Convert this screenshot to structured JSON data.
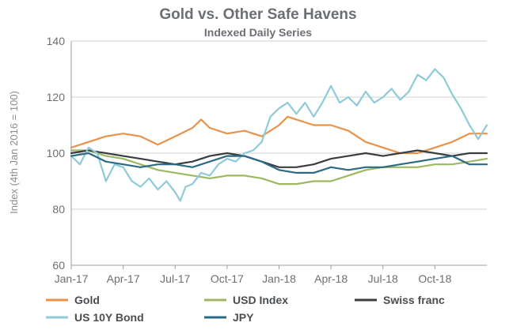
{
  "chart_data": {
    "type": "line",
    "title": "Gold vs. Other Safe Havens",
    "subtitle": "Indexed Daily Series",
    "ylabel": "Index (4th Jan 2016 = 100)",
    "xlabel": "",
    "ylim": [
      60,
      140
    ],
    "yticks": [
      60,
      80,
      100,
      120,
      140
    ],
    "x_range": [
      0,
      24
    ],
    "xtick_labels": [
      "Jan-17",
      "Apr-17",
      "Jul-17",
      "Oct-17",
      "Jan-18",
      "Apr-18",
      "Jul-18",
      "Oct-18"
    ],
    "xtick_positions": [
      0,
      3,
      6,
      9,
      12,
      15,
      18,
      21
    ],
    "grid": "horizontal",
    "legend_position": "bottom",
    "series": [
      {
        "name": "Gold",
        "color": "#e8924a",
        "points": [
          [
            0,
            102
          ],
          [
            1,
            104
          ],
          [
            2,
            106
          ],
          [
            3,
            107
          ],
          [
            4,
            106
          ],
          [
            5,
            103
          ],
          [
            6,
            106
          ],
          [
            7,
            109
          ],
          [
            7.5,
            112
          ],
          [
            8,
            109
          ],
          [
            9,
            107
          ],
          [
            10,
            108
          ],
          [
            11,
            106
          ],
          [
            12,
            110
          ],
          [
            12.5,
            113
          ],
          [
            13,
            112
          ],
          [
            14,
            110
          ],
          [
            15,
            110
          ],
          [
            16,
            108
          ],
          [
            17,
            104
          ],
          [
            18,
            102
          ],
          [
            19,
            100
          ],
          [
            20,
            100
          ],
          [
            21,
            102
          ],
          [
            22,
            104
          ],
          [
            23,
            107
          ],
          [
            24,
            107
          ]
        ]
      },
      {
        "name": "USD Index",
        "color": "#9ab960",
        "points": [
          [
            0,
            101
          ],
          [
            1,
            101
          ],
          [
            2,
            99
          ],
          [
            3,
            98
          ],
          [
            4,
            96
          ],
          [
            5,
            94
          ],
          [
            6,
            93
          ],
          [
            7,
            92
          ],
          [
            8,
            91
          ],
          [
            9,
            92
          ],
          [
            10,
            92
          ],
          [
            11,
            91
          ],
          [
            12,
            89
          ],
          [
            13,
            89
          ],
          [
            14,
            90
          ],
          [
            15,
            90
          ],
          [
            16,
            92
          ],
          [
            17,
            94
          ],
          [
            18,
            95
          ],
          [
            19,
            95
          ],
          [
            20,
            95
          ],
          [
            21,
            96
          ],
          [
            22,
            96
          ],
          [
            23,
            97
          ],
          [
            24,
            98
          ]
        ]
      },
      {
        "name": "Swiss franc",
        "color": "#3a3d40",
        "points": [
          [
            0,
            100
          ],
          [
            1,
            101
          ],
          [
            2,
            100
          ],
          [
            3,
            99
          ],
          [
            4,
            98
          ],
          [
            5,
            97
          ],
          [
            6,
            96
          ],
          [
            7,
            97
          ],
          [
            8,
            99
          ],
          [
            9,
            100
          ],
          [
            10,
            99
          ],
          [
            11,
            97
          ],
          [
            12,
            95
          ],
          [
            13,
            95
          ],
          [
            14,
            96
          ],
          [
            15,
            98
          ],
          [
            16,
            99
          ],
          [
            17,
            100
          ],
          [
            18,
            99
          ],
          [
            19,
            100
          ],
          [
            20,
            101
          ],
          [
            21,
            100
          ],
          [
            22,
            99
          ],
          [
            23,
            100
          ],
          [
            24,
            100
          ]
        ]
      },
      {
        "name": "US 10Y Bond",
        "color": "#8fcad8",
        "points": [
          [
            0,
            99
          ],
          [
            0.5,
            96
          ],
          [
            1,
            102
          ],
          [
            1.5,
            100
          ],
          [
            2,
            90
          ],
          [
            2.5,
            96
          ],
          [
            3,
            95
          ],
          [
            3.5,
            90
          ],
          [
            4,
            88
          ],
          [
            4.5,
            91
          ],
          [
            5,
            87
          ],
          [
            5.5,
            90
          ],
          [
            6,
            86
          ],
          [
            6.3,
            83
          ],
          [
            6.6,
            88
          ],
          [
            7,
            89
          ],
          [
            7.5,
            93
          ],
          [
            8,
            92
          ],
          [
            8.5,
            96
          ],
          [
            9,
            98
          ],
          [
            9.5,
            97
          ],
          [
            10,
            100
          ],
          [
            10.5,
            101
          ],
          [
            11,
            104
          ],
          [
            11.5,
            113
          ],
          [
            12,
            116
          ],
          [
            12.5,
            118
          ],
          [
            13,
            114
          ],
          [
            13.5,
            118
          ],
          [
            14,
            113
          ],
          [
            14.5,
            118
          ],
          [
            15,
            124
          ],
          [
            15.5,
            118
          ],
          [
            16,
            120
          ],
          [
            16.5,
            117
          ],
          [
            17,
            122
          ],
          [
            17.5,
            118
          ],
          [
            18,
            120
          ],
          [
            18.5,
            123
          ],
          [
            19,
            119
          ],
          [
            19.5,
            122
          ],
          [
            20,
            128
          ],
          [
            20.5,
            126
          ],
          [
            21,
            130
          ],
          [
            21.5,
            127
          ],
          [
            22,
            121
          ],
          [
            22.5,
            116
          ],
          [
            23,
            110
          ],
          [
            23.5,
            105
          ],
          [
            24,
            110
          ]
        ]
      },
      {
        "name": "JPY",
        "color": "#2a6a84",
        "points": [
          [
            0,
            99
          ],
          [
            1,
            100
          ],
          [
            2,
            97
          ],
          [
            3,
            96
          ],
          [
            4,
            95
          ],
          [
            5,
            96
          ],
          [
            6,
            96
          ],
          [
            7,
            95
          ],
          [
            8,
            97
          ],
          [
            9,
            99
          ],
          [
            10,
            99
          ],
          [
            11,
            97
          ],
          [
            12,
            94
          ],
          [
            13,
            93
          ],
          [
            14,
            93
          ],
          [
            15,
            95
          ],
          [
            16,
            94
          ],
          [
            17,
            95
          ],
          [
            18,
            95
          ],
          [
            19,
            96
          ],
          [
            20,
            97
          ],
          [
            21,
            98
          ],
          [
            22,
            99
          ],
          [
            23,
            96
          ],
          [
            24,
            96
          ]
        ]
      }
    ]
  }
}
